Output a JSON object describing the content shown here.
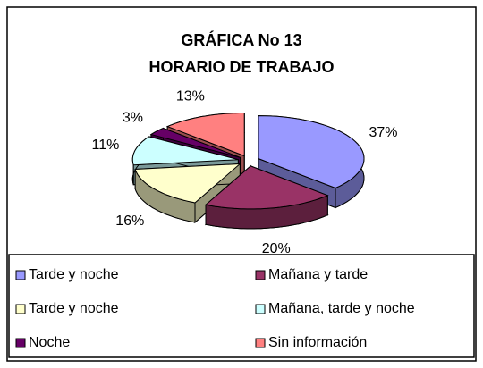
{
  "chart_data": {
    "type": "pie3d",
    "title": "GRÁFICA No 13",
    "subtitle": "HORARIO DE TRABAJO",
    "categories": [
      "Tarde y noche",
      "Mañana y tarde",
      "Tarde y noche",
      "Mañana, tarde y noche",
      "Noche",
      "Sin información"
    ],
    "values": [
      37,
      20,
      16,
      11,
      3,
      13
    ],
    "value_labels": [
      "37%",
      "20%",
      "16%",
      "11%",
      "3%",
      "13%"
    ],
    "colors": [
      "#9999ff",
      "#993366",
      "#ffffcc",
      "#ccffff",
      "#660066",
      "#ff8080"
    ],
    "legend": "bottom"
  }
}
